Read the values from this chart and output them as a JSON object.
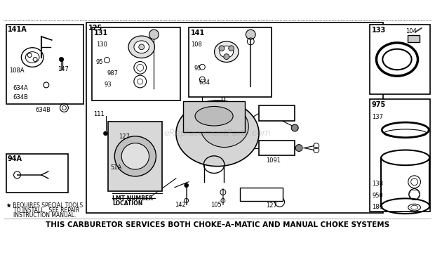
{
  "title": "THIS CARBURETOR SERVICES BOTH CHOKE–A–MATIC AND MANUAL CHOKE SYSTEMS",
  "bg_color": "#ffffff",
  "watermark": "eReplacementParts.com",
  "footnote_line1": "★ REQUIRES SPECIAL TOOLS",
  "footnote_line2": "TO INSTALL.  SEE REPAIR",
  "footnote_line3": "INSTRUCTION MANUAL.",
  "figsize": [
    6.2,
    3.6
  ],
  "dpi": 100
}
